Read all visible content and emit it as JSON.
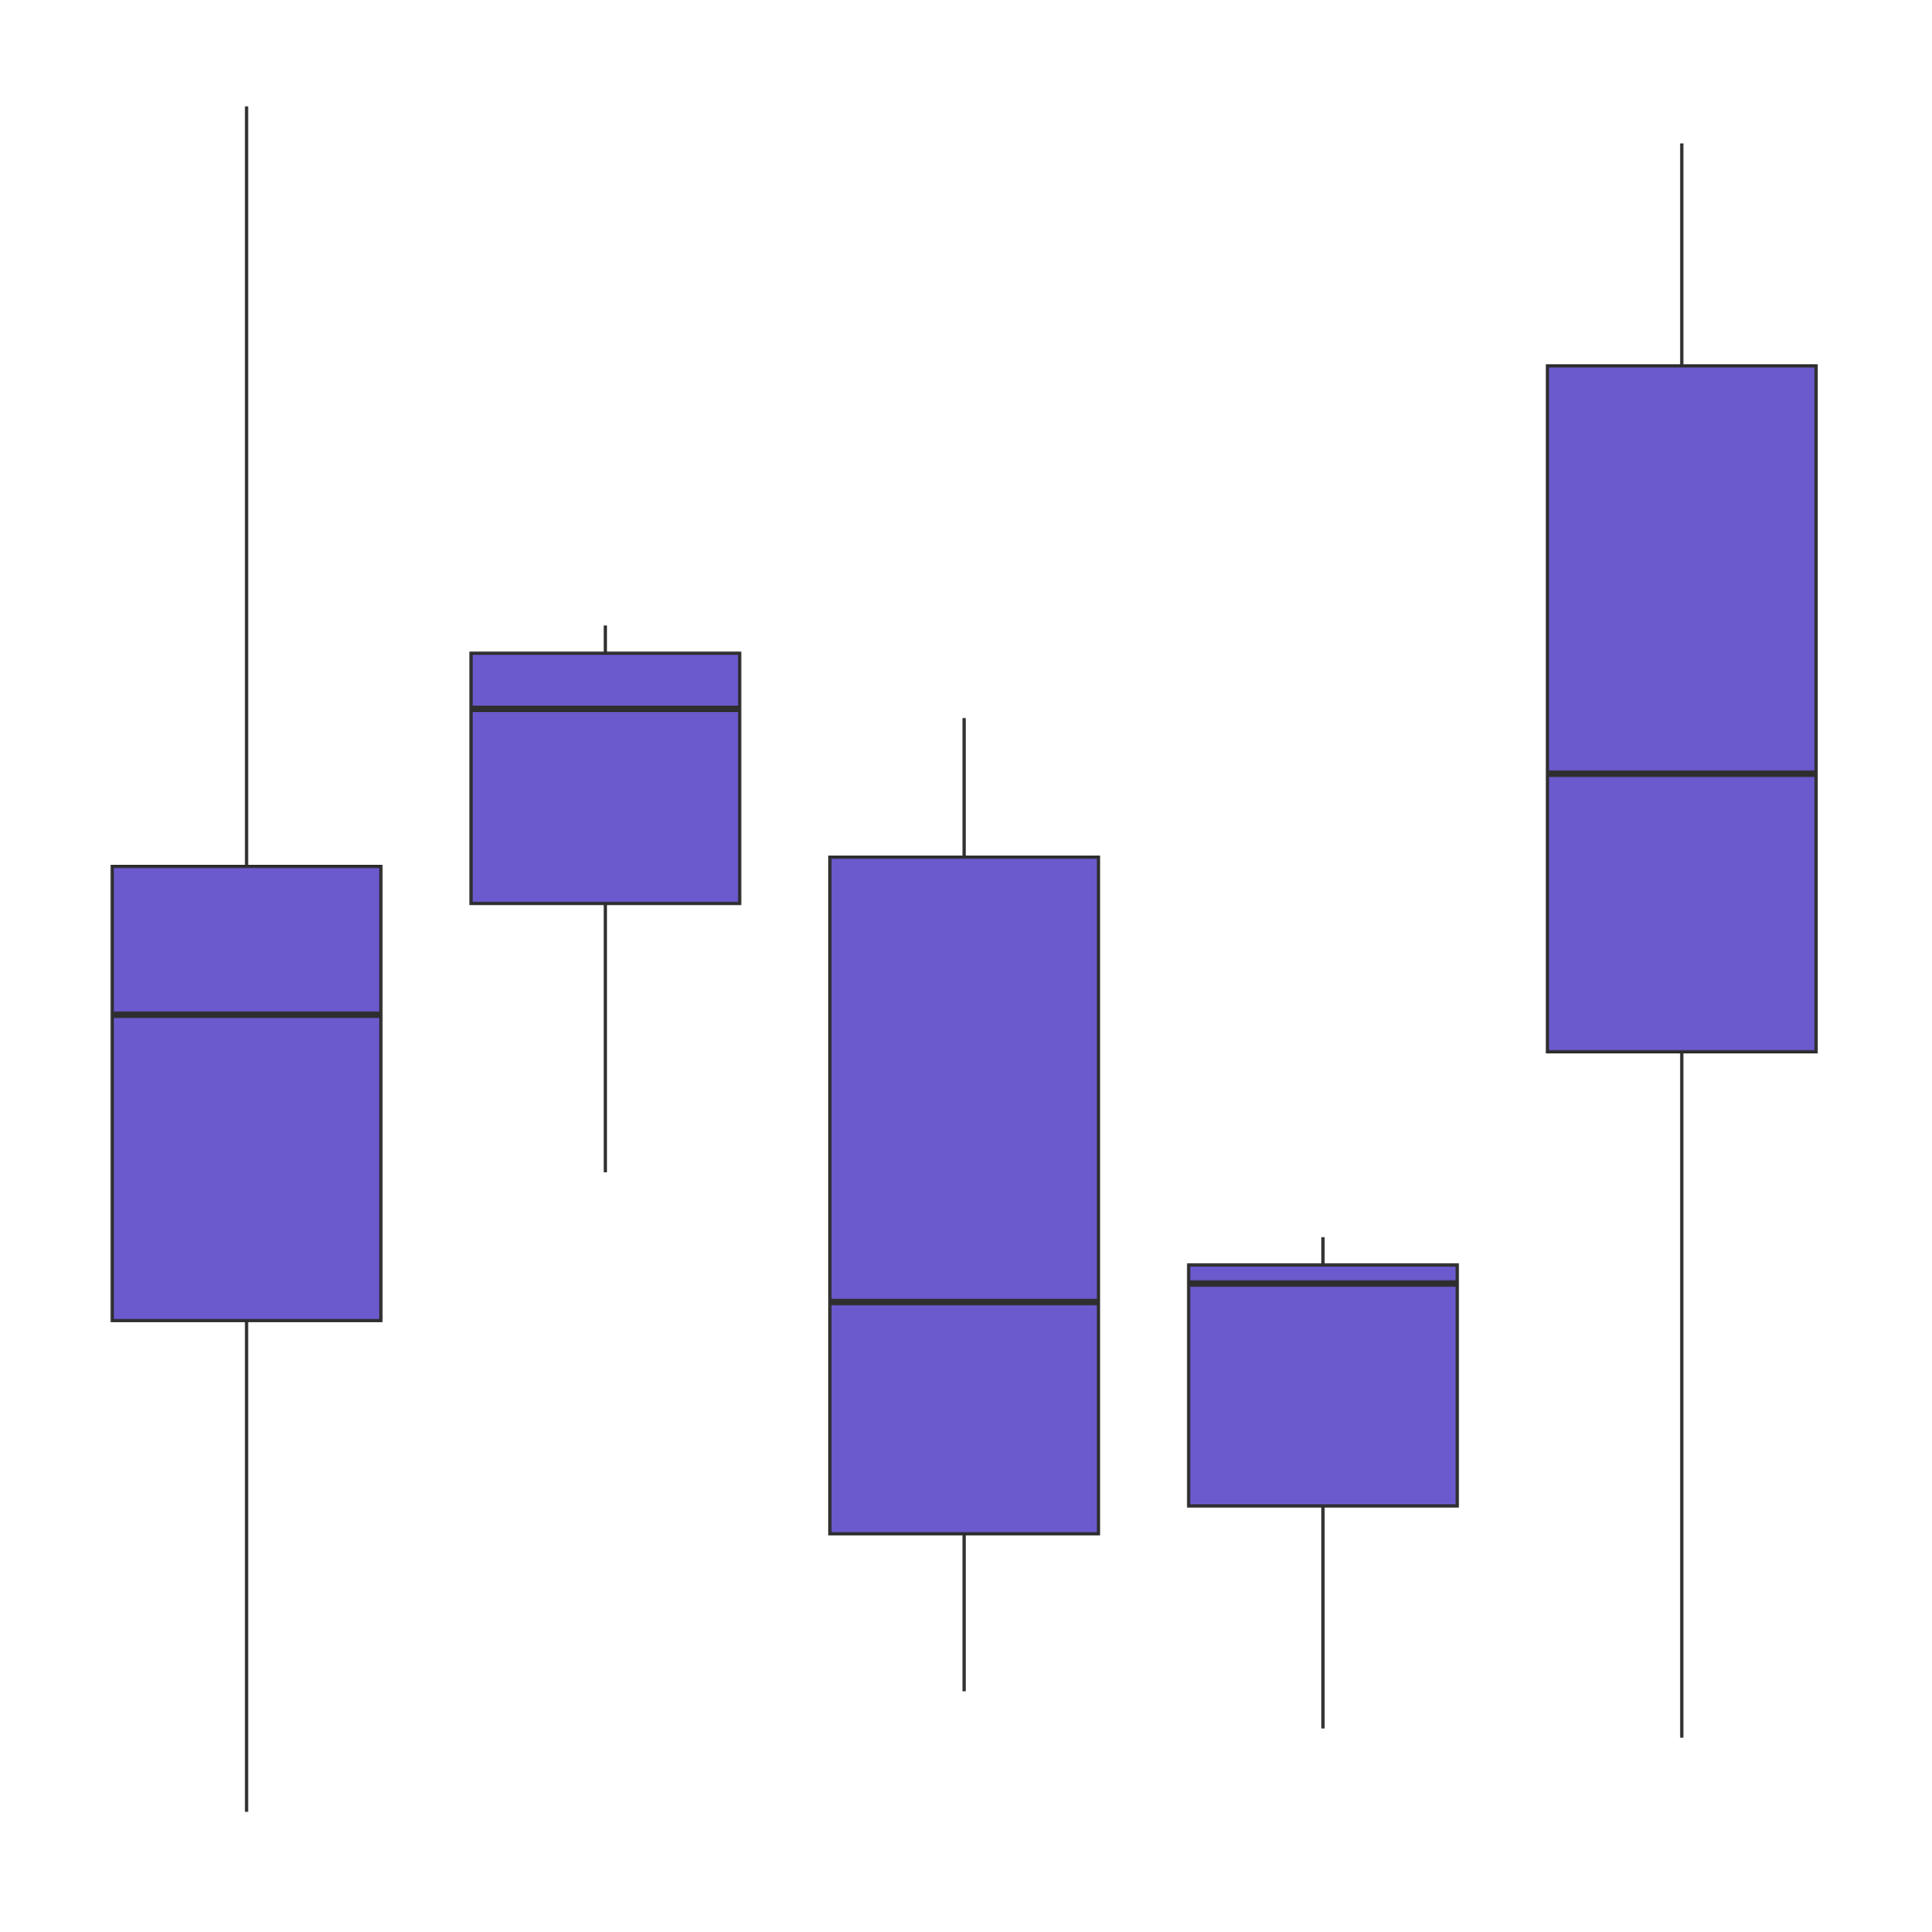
{
  "chart_data": {
    "type": "box",
    "title": "",
    "xlabel": "",
    "ylabel": "",
    "categories": [
      "",
      "",
      "",
      "",
      ""
    ],
    "ylim": [
      0,
      100
    ],
    "grid": false,
    "legend": "none",
    "colors": {
      "box_fill": "#6a5acd",
      "line": "#2e2e2e",
      "background": "#ffffff"
    },
    "boxes": [
      {
        "whislo": 4.0,
        "q1": 30.5,
        "med": 47.0,
        "q3": 55.0,
        "whishi": 96.0
      },
      {
        "whislo": 38.5,
        "q1": 53.0,
        "med": 63.5,
        "q3": 66.5,
        "whishi": 68.0
      },
      {
        "whislo": 10.5,
        "q1": 19.0,
        "med": 31.5,
        "q3": 55.5,
        "whishi": 63.0
      },
      {
        "whislo": 8.5,
        "q1": 20.5,
        "med": 32.5,
        "q3": 33.5,
        "whishi": 35.0
      },
      {
        "whislo": 8.0,
        "q1": 45.0,
        "med": 60.0,
        "q3": 82.0,
        "whishi": 94.0
      }
    ]
  }
}
